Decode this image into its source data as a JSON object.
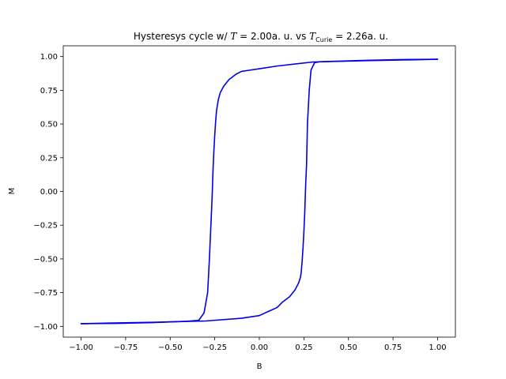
{
  "chart_data": {
    "type": "line",
    "title": {
      "prefix": "Hysteresys cycle w/ ",
      "t_symbol": "T",
      "t_value": " = 2.00a. u.",
      "middle": "  vs ",
      "curie_symbol": "T",
      "curie_sub": "Curie",
      "curie_value": " = 2.26a. u."
    },
    "xlabel": "B",
    "ylabel": "M",
    "xlim": [
      -1.1,
      1.1
    ],
    "ylim": [
      -1.08,
      1.08
    ],
    "xticks": [
      -1.0,
      -0.75,
      -0.5,
      -0.25,
      0.0,
      0.25,
      0.5,
      0.75,
      1.0
    ],
    "xtick_labels": [
      "−1.00",
      "−0.75",
      "−0.50",
      "−0.25",
      "0.00",
      "0.25",
      "0.50",
      "0.75",
      "1.00"
    ],
    "yticks": [
      -1.0,
      -0.75,
      -0.5,
      -0.25,
      0.0,
      0.25,
      0.5,
      0.75,
      1.0
    ],
    "ytick_labels": [
      "−1.00",
      "−0.75",
      "−0.50",
      "−0.25",
      "0.00",
      "0.25",
      "0.50",
      "0.75",
      "1.00"
    ],
    "grid": false,
    "line_color": "#0000e6",
    "series": [
      {
        "x": [
          -1.0,
          -0.8,
          -0.6,
          -0.4,
          -0.34,
          -0.31,
          -0.29,
          -0.28,
          -0.27,
          -0.265,
          -0.26,
          -0.255,
          -0.25,
          -0.245,
          -0.24,
          -0.235,
          -0.23,
          -0.22,
          -0.2,
          -0.17,
          -0.13,
          -0.1,
          -0.05,
          0.0,
          0.1,
          0.3,
          0.6,
          0.85,
          1.0
        ],
        "y": [
          -0.98,
          -0.978,
          -0.972,
          -0.962,
          -0.955,
          -0.9,
          -0.75,
          -0.5,
          -0.2,
          -0.05,
          0.15,
          0.3,
          0.42,
          0.52,
          0.6,
          0.64,
          0.68,
          0.73,
          0.78,
          0.83,
          0.87,
          0.89,
          0.9,
          0.91,
          0.93,
          0.96,
          0.97,
          0.976,
          0.98
        ]
      },
      {
        "x": [
          1.0,
          0.8,
          0.6,
          0.34,
          0.31,
          0.29,
          0.28,
          0.27,
          0.265,
          0.26,
          0.255,
          0.25,
          0.245,
          0.24,
          0.235,
          0.23,
          0.22,
          0.2,
          0.17,
          0.13,
          0.1,
          0.05,
          0.0,
          -0.1,
          -0.3,
          -0.6,
          -0.85,
          -1.0
        ],
        "y": [
          0.98,
          0.978,
          0.972,
          0.962,
          0.955,
          0.9,
          0.75,
          0.5,
          0.2,
          0.05,
          -0.15,
          -0.3,
          -0.42,
          -0.52,
          -0.6,
          -0.64,
          -0.68,
          -0.73,
          -0.78,
          -0.82,
          -0.86,
          -0.89,
          -0.92,
          -0.94,
          -0.96,
          -0.97,
          -0.976,
          -0.98
        ]
      }
    ]
  }
}
